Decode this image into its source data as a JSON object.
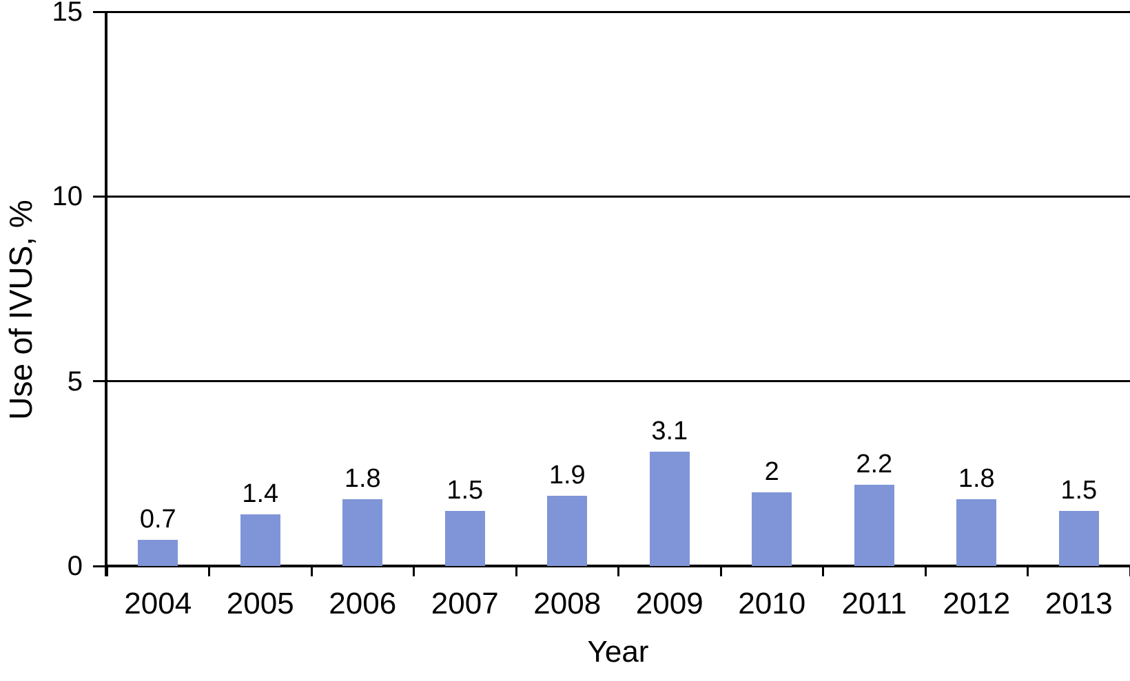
{
  "chart_data": {
    "type": "bar",
    "title": "",
    "xlabel": "Year",
    "ylabel": "Use of IVUS, %",
    "categories": [
      "2004",
      "2005",
      "2006",
      "2007",
      "2008",
      "2009",
      "2010",
      "2011",
      "2012",
      "2013"
    ],
    "values": [
      0.7,
      1.4,
      1.8,
      1.5,
      1.9,
      3.1,
      2,
      2.2,
      1.8,
      1.5
    ],
    "value_labels": [
      "0.7",
      "1.4",
      "1.8",
      "1.5",
      "1.9",
      "3.1",
      "2",
      "2.2",
      "1.8",
      "1.5"
    ],
    "ylim": [
      0,
      15
    ],
    "yticks": [
      0,
      5,
      10,
      15
    ],
    "ytick_labels": [
      "0",
      "5",
      "10",
      "15"
    ],
    "grid": "horizontal-on",
    "legend": "none",
    "bar_color": "#8095D8",
    "axis_color": "#000000",
    "text_color": "#000000",
    "background_color": "#FFFFFF"
  }
}
